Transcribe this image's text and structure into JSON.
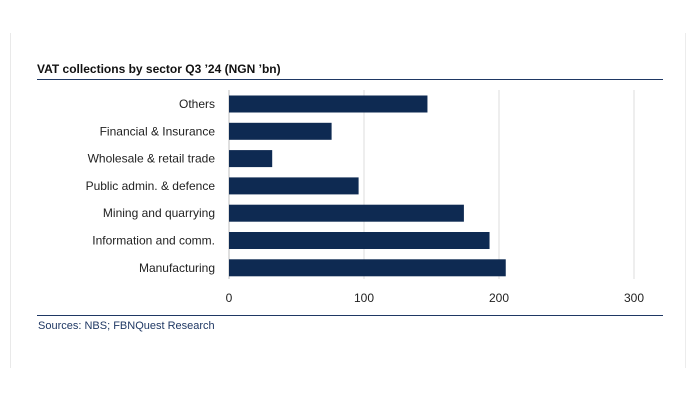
{
  "source_text": "Sources: NBS; FBNQuest Research",
  "colors": {
    "bar": "#0e2a52",
    "rule": "#1f3864",
    "gridline": "#dcdcdc",
    "axis": "#bfbfbf"
  },
  "chart_data": {
    "type": "bar",
    "orientation": "horizontal",
    "title": "VAT collections by sector Q3 ’24 (NGN ’bn)",
    "categories": [
      "Others",
      "Financial & Insurance",
      "Wholesale & retail trade",
      "Public admin. & defence",
      "Mining and quarrying",
      "Information and comm.",
      "Manufacturing"
    ],
    "values": [
      147,
      76,
      32,
      96,
      174,
      193,
      205
    ],
    "xlabel": "",
    "ylabel": "",
    "xlim": [
      0,
      300
    ],
    "xticks": [
      0,
      100,
      200,
      300
    ],
    "grid": true
  }
}
